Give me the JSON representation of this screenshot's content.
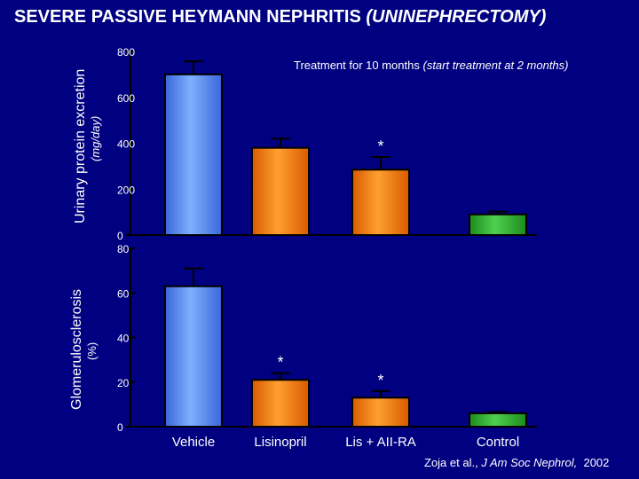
{
  "title": {
    "main": "SEVERE PASSIVE HEYMANN NEPHRITIS",
    "paren": "(UNINEPHRECTOMY)"
  },
  "treatment_note": {
    "plain": "Treatment for 10 months",
    "italic": "(start treatment at 2 months)"
  },
  "citation": {
    "authors": "Zoja et al.,",
    "journal": "J Am Soc Nephrol,",
    "year": "2002"
  },
  "colors": {
    "background": "#000080",
    "vehicle": "#5b8ff0",
    "lisinopril": "#f07a10",
    "lis_aiira": "#f07a10",
    "control": "#2aa02a"
  },
  "chart_data": [
    {
      "type": "bar",
      "title": "Urinary protein excretion",
      "ylabel_main": "Urinary protein excretion",
      "ylabel_unit": "(mg/day)",
      "categories": [
        "Vehicle",
        "Lisinopril",
        "Lis + AII-RA",
        "Control"
      ],
      "values": [
        700,
        380,
        285,
        90
      ],
      "errors": [
        57,
        40,
        55,
        12
      ],
      "significance": [
        "",
        "",
        "*",
        ""
      ],
      "yticks": [
        "800",
        "600",
        "400",
        "200",
        "0"
      ],
      "ylim": [
        0,
        800
      ]
    },
    {
      "type": "bar",
      "title": "Glomerulosclerosis",
      "ylabel_main": "Glomerulosclerosis",
      "ylabel_unit": "(%)",
      "categories": [
        "Vehicle",
        "Lisinopril",
        "Lis + AII-RA",
        "Control"
      ],
      "values": [
        63,
        21,
        13,
        6
      ],
      "errors": [
        8,
        3,
        3,
        0.5
      ],
      "significance": [
        "",
        "*",
        "*",
        ""
      ],
      "yticks": [
        "80",
        "60",
        "40",
        "20",
        "0"
      ],
      "ylim": [
        0,
        80
      ]
    }
  ]
}
